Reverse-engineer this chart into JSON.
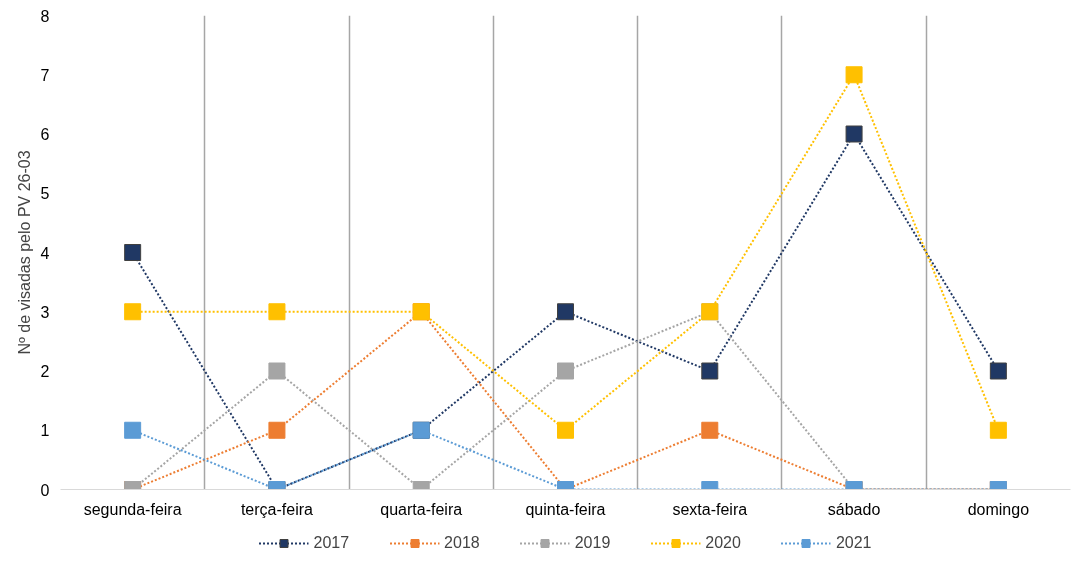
{
  "chart_data": {
    "type": "line",
    "ylabel": "Nº de visadas pelo PV 26-03",
    "categories": [
      "segunda-feira",
      "terça-feira",
      "quarta-feira",
      "quinta-feira",
      "sexta-feira",
      "sábado",
      "domingo"
    ],
    "series": [
      {
        "name": "2017",
        "color": "#203864",
        "values": [
          4,
          0,
          1,
          3,
          2,
          6,
          2
        ]
      },
      {
        "name": "2018",
        "color": "#ed7d31",
        "values": [
          0,
          1,
          3,
          0,
          1,
          0,
          0
        ]
      },
      {
        "name": "2019",
        "color": "#a5a5a5",
        "values": [
          0,
          2,
          0,
          2,
          3,
          0,
          0
        ]
      },
      {
        "name": "2020",
        "color": "#ffc000",
        "values": [
          3,
          3,
          3,
          1,
          3,
          7,
          1
        ]
      },
      {
        "name": "2021",
        "color": "#5b9bd5",
        "values": [
          1,
          0,
          1,
          0,
          0,
          0,
          0
        ]
      }
    ],
    "ylim": [
      0,
      8
    ],
    "yticks": [
      0,
      1,
      2,
      3,
      4,
      5,
      6,
      7,
      8
    ],
    "grid": "x",
    "legend": "bottom",
    "marker": "square",
    "line_style": "dotted"
  }
}
